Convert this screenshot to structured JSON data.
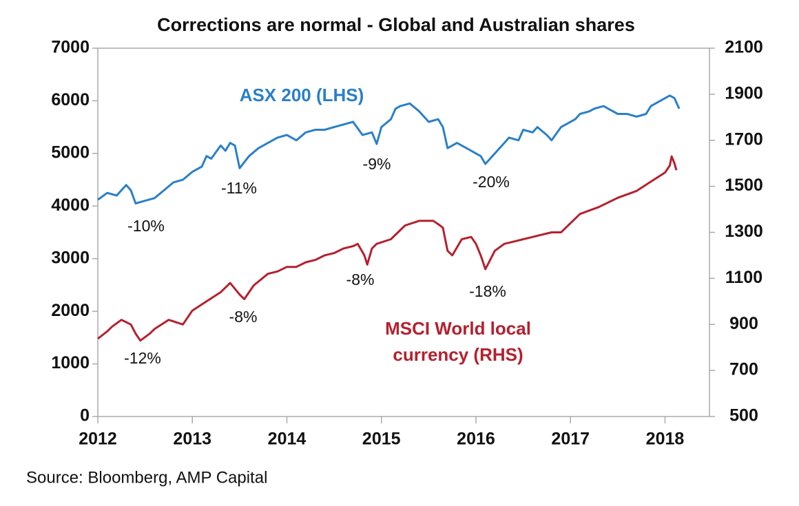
{
  "chart_data": {
    "type": "line",
    "title": "Corrections are normal - Global and Australian shares",
    "source": "Source: Bloomberg, AMP Capital",
    "xlim": [
      2012,
      2018.47
    ],
    "xticks": [
      2012,
      2013,
      2014,
      2015,
      2016,
      2017,
      2018
    ],
    "ylim": [
      0,
      7000
    ],
    "yticks": [
      0,
      1000,
      2000,
      3000,
      4000,
      5000,
      6000,
      7000
    ],
    "y2lim": [
      500,
      2100
    ],
    "y2ticks": [
      500,
      700,
      900,
      1100,
      1300,
      1500,
      1700,
      1900,
      2100
    ],
    "grid": false,
    "series": [
      {
        "name": "ASX 200 (LHS)",
        "color": "#2a7fc9",
        "axis": "y",
        "x": [
          2012.0,
          2012.1,
          2012.2,
          2012.3,
          2012.35,
          2012.4,
          2012.5,
          2012.6,
          2012.7,
          2012.8,
          2012.9,
          2013.0,
          2013.1,
          2013.15,
          2013.2,
          2013.3,
          2013.35,
          2013.4,
          2013.45,
          2013.5,
          2013.6,
          2013.7,
          2013.8,
          2013.9,
          2014.0,
          2014.1,
          2014.2,
          2014.3,
          2014.4,
          2014.5,
          2014.6,
          2014.7,
          2014.8,
          2014.9,
          2014.95,
          2015.0,
          2015.1,
          2015.15,
          2015.2,
          2015.3,
          2015.4,
          2015.5,
          2015.6,
          2015.65,
          2015.7,
          2015.8,
          2015.85,
          2015.9,
          2016.0,
          2016.05,
          2016.1,
          2016.2,
          2016.3,
          2016.35,
          2016.45,
          2016.5,
          2016.6,
          2016.65,
          2016.75,
          2016.8,
          2016.9,
          2016.95,
          2017.05,
          2017.1,
          2017.2,
          2017.25,
          2017.35,
          2017.4,
          2017.5,
          2017.6,
          2017.7,
          2017.8,
          2017.85,
          2017.9,
          2018.0,
          2018.05,
          2018.1,
          2018.15
        ],
        "values": [
          4120,
          4250,
          4200,
          4400,
          4300,
          4050,
          4100,
          4150,
          4300,
          4450,
          4500,
          4650,
          4750,
          4950,
          4900,
          5150,
          5050,
          5200,
          5150,
          4720,
          4950,
          5100,
          5200,
          5300,
          5350,
          5250,
          5400,
          5450,
          5450,
          5500,
          5550,
          5600,
          5350,
          5400,
          5180,
          5500,
          5650,
          5850,
          5900,
          5950,
          5800,
          5600,
          5650,
          5500,
          5100,
          5200,
          5150,
          5100,
          5000,
          4950,
          4800,
          5000,
          5200,
          5300,
          5250,
          5450,
          5400,
          5500,
          5350,
          5250,
          5500,
          5550,
          5650,
          5750,
          5800,
          5850,
          5900,
          5850,
          5750,
          5750,
          5700,
          5750,
          5900,
          5950,
          6050,
          6100,
          6050,
          5850
        ]
      },
      {
        "name": "MSCI World local currency (RHS)",
        "color": "#b5202e",
        "axis": "y2",
        "x": [
          2012.0,
          2012.1,
          2012.15,
          2012.25,
          2012.35,
          2012.4,
          2012.45,
          2012.55,
          2012.6,
          2012.75,
          2012.9,
          2013.0,
          2013.15,
          2013.3,
          2013.4,
          2013.5,
          2013.55,
          2013.65,
          2013.8,
          2013.9,
          2014.0,
          2014.1,
          2014.2,
          2014.3,
          2014.4,
          2014.5,
          2014.6,
          2014.7,
          2014.75,
          2014.82,
          2014.85,
          2014.9,
          2014.95,
          2015.1,
          2015.25,
          2015.4,
          2015.55,
          2015.62,
          2015.65,
          2015.7,
          2015.75,
          2015.85,
          2015.95,
          2016.0,
          2016.05,
          2016.1,
          2016.2,
          2016.3,
          2016.4,
          2016.5,
          2016.6,
          2016.7,
          2016.8,
          2016.9,
          2016.95,
          2017.1,
          2017.3,
          2017.5,
          2017.7,
          2017.85,
          2018.0,
          2018.05,
          2018.07,
          2018.1,
          2018.12
        ],
        "values": [
          838,
          870,
          890,
          920,
          900,
          860,
          830,
          860,
          880,
          920,
          900,
          960,
          1000,
          1040,
          1080,
          1030,
          1010,
          1070,
          1120,
          1130,
          1150,
          1150,
          1170,
          1180,
          1200,
          1210,
          1230,
          1240,
          1250,
          1200,
          1160,
          1230,
          1250,
          1270,
          1330,
          1350,
          1350,
          1330,
          1320,
          1220,
          1200,
          1270,
          1280,
          1250,
          1200,
          1140,
          1220,
          1250,
          1260,
          1270,
          1280,
          1290,
          1300,
          1300,
          1320,
          1380,
          1410,
          1450,
          1480,
          1520,
          1560,
          1590,
          1630,
          1600,
          1570
        ]
      }
    ],
    "annotations": [
      "-10%",
      "-11%",
      "-9%",
      "-20%",
      "-12%",
      "-8%",
      "-8%",
      "-18%"
    ]
  }
}
